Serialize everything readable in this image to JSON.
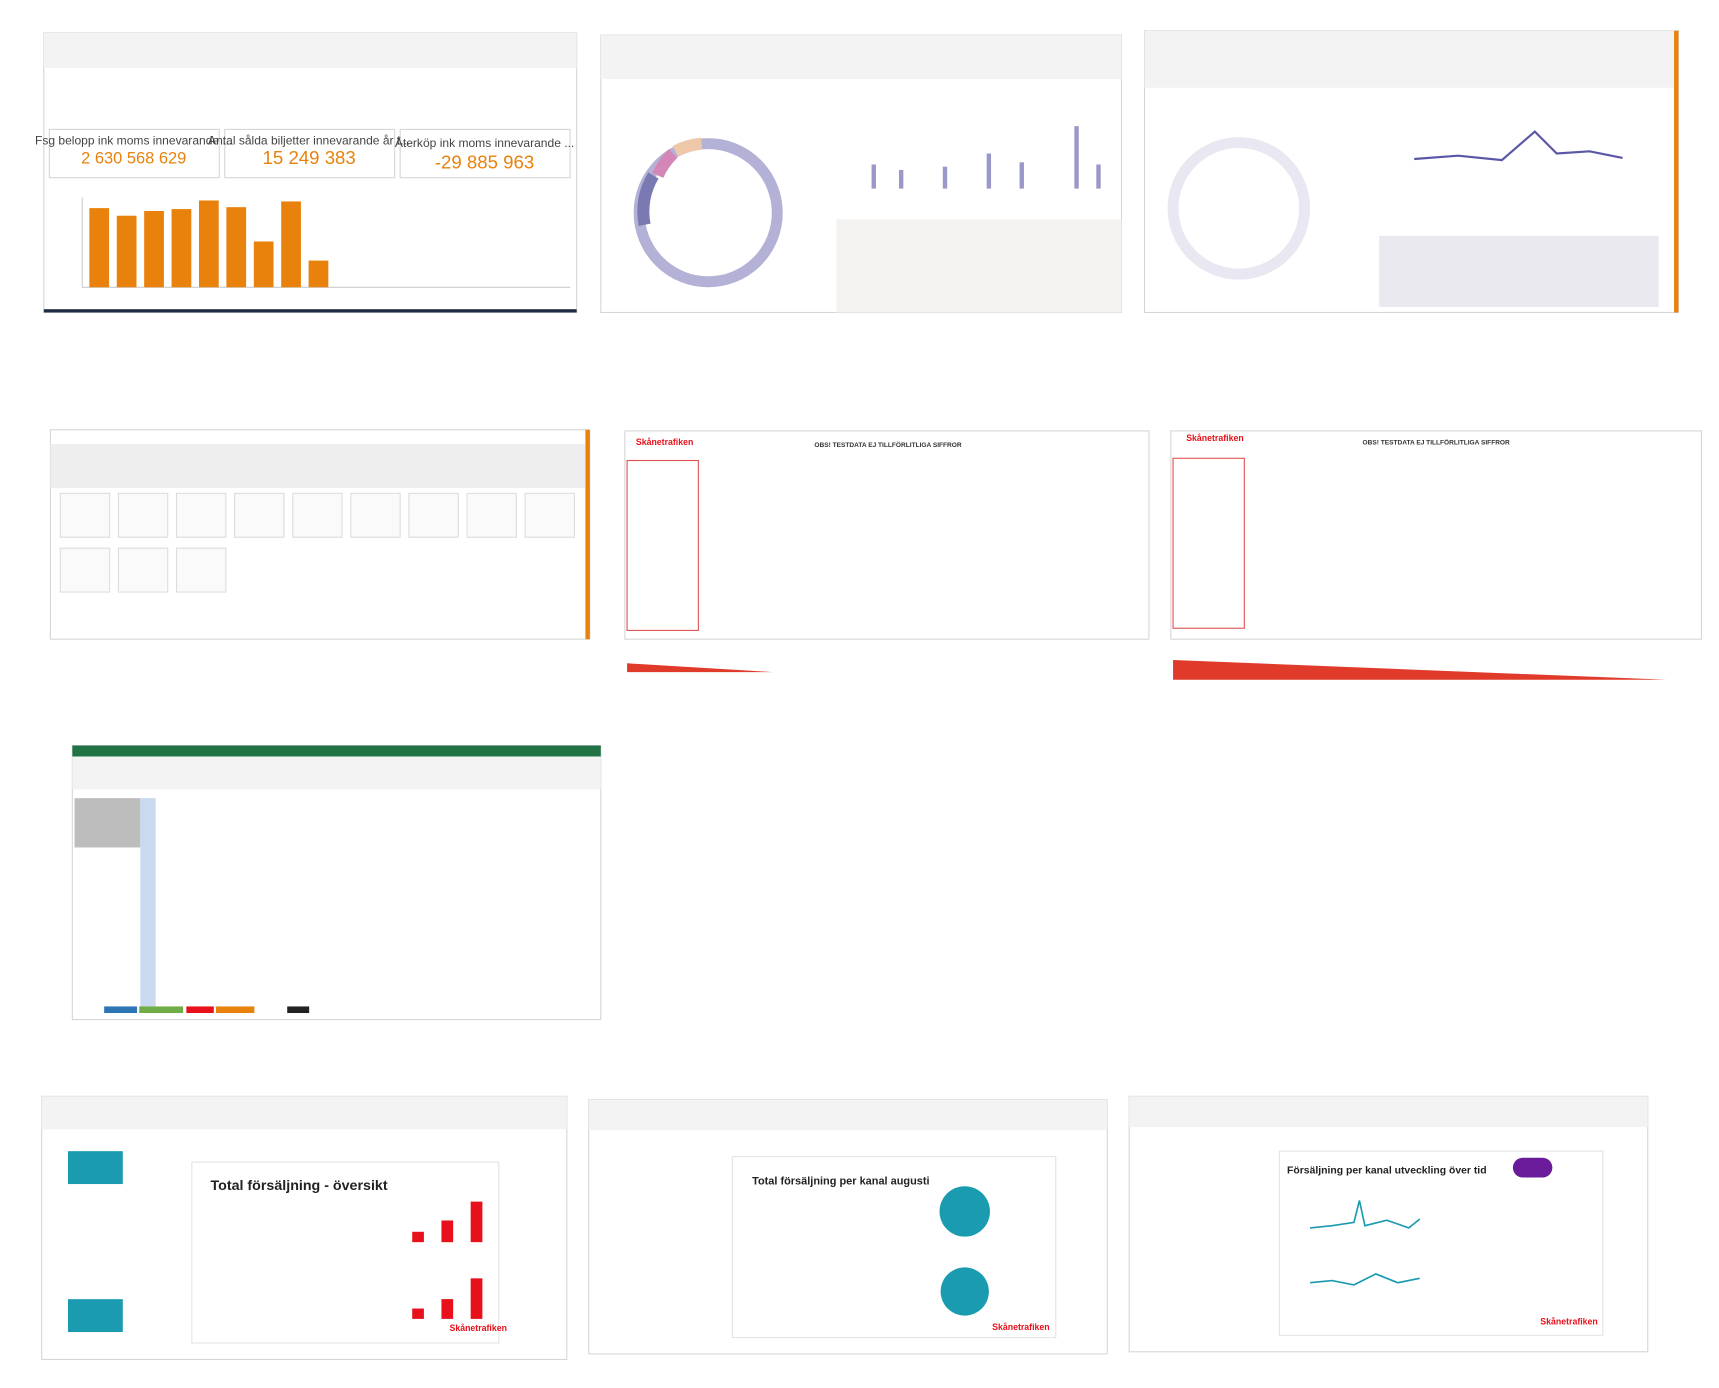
{
  "qlik_dashboard": {
    "kpis": [
      {
        "label": "Fsg belopp ink moms innevarande ...",
        "value": "2 630 568 629"
      },
      {
        "label": "Antal sålda biljetter innevarande år t...",
        "value": "15 249 383"
      },
      {
        "label": "Återköp ink moms innevarande ...",
        "value": "-29 885 963"
      }
    ],
    "bar_chart": {
      "type": "bar",
      "color": "#e8820c",
      "values": [
        83,
        75,
        80,
        82,
        91,
        84,
        48,
        90,
        28
      ],
      "ylim": [
        0,
        100
      ]
    }
  },
  "testdata_banner": "OBS! TESTDATA EJ TILLFÖRLITLIGA SIFFROR",
  "brand": "Skånetrafiken",
  "slides": [
    {
      "title": "Total försäljning - översikt",
      "charts": [
        {
          "type": "bar",
          "color": "#e8101a",
          "values": [
            11,
            23,
            43
          ],
          "ylim": [
            0,
            50
          ]
        },
        {
          "type": "bar",
          "color": "#e8101a",
          "values": [
            11,
            21,
            43
          ],
          "ylim": [
            0,
            50
          ]
        }
      ]
    },
    {
      "title": "Total försäljning per kanal augusti"
    },
    {
      "title": "Försäljning per kanal utveckling över tid"
    }
  ]
}
